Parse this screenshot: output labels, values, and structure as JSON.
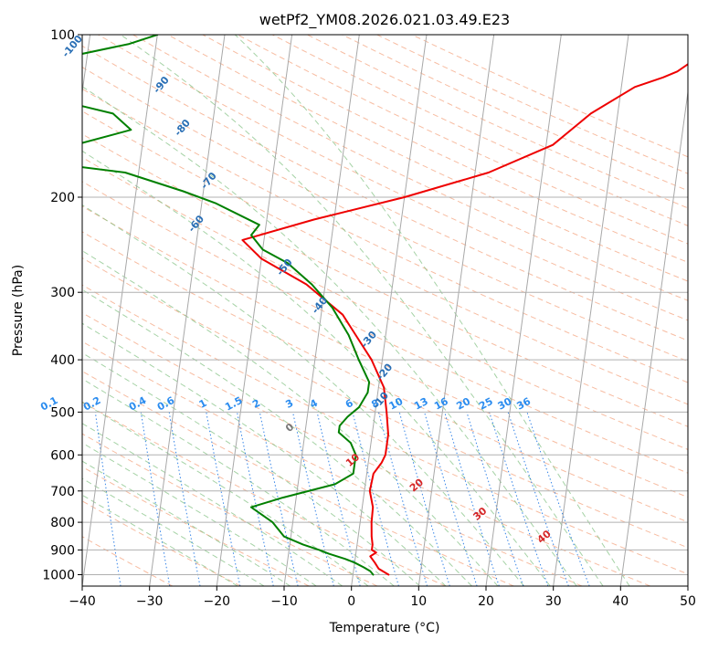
{
  "chart_data": {
    "type": "line",
    "title": "wetPf2_YM08.2026.021.03.49.E23",
    "xlabel": "Temperature (°C)",
    "ylabel": "Pressure (hPa)",
    "xlim": [
      -40,
      50
    ],
    "ylim": [
      1050,
      100
    ],
    "x_ticks": [
      -40,
      -30,
      -20,
      -10,
      0,
      10,
      20,
      30,
      40,
      50
    ],
    "y_ticks": [
      100,
      200,
      300,
      400,
      500,
      600,
      700,
      800,
      900,
      1000
    ],
    "grid": true,
    "skew_factor": 35,
    "series": [
      {
        "name": "Temperature",
        "color": "#ee0000",
        "points": [
          [
            5.3,
            1000
          ],
          [
            3.7,
            975
          ],
          [
            3.0,
            950
          ],
          [
            2.2,
            925
          ],
          [
            3.0,
            910
          ],
          [
            2.3,
            900
          ],
          [
            2.3,
            880
          ],
          [
            2.0,
            850
          ],
          [
            1.7,
            800
          ],
          [
            1.6,
            750
          ],
          [
            0.8,
            700
          ],
          [
            1.0,
            650
          ],
          [
            2.0,
            620
          ],
          [
            2.4,
            600
          ],
          [
            2.4,
            550
          ],
          [
            1.7,
            500
          ],
          [
            0.8,
            450
          ],
          [
            -1.6,
            400
          ],
          [
            -6.8,
            330
          ],
          [
            -12.8,
            290
          ],
          [
            -20.0,
            260
          ],
          [
            -23.2,
            240
          ],
          [
            -13.0,
            220
          ],
          [
            0.0,
            200
          ],
          [
            12.0,
            180
          ],
          [
            21.0,
            160
          ],
          [
            26.0,
            140
          ],
          [
            32.0,
            125
          ],
          [
            36.0,
            120
          ],
          [
            38.0,
            117
          ],
          [
            40.0,
            112
          ],
          [
            43.0,
            107
          ],
          [
            45.0,
            104
          ],
          [
            47.0,
            100
          ]
        ]
      },
      {
        "name": "Dewpoint",
        "color": "#008000",
        "points": [
          [
            3.0,
            1000
          ],
          [
            2.5,
            985
          ],
          [
            1.5,
            970
          ],
          [
            0.0,
            950
          ],
          [
            -1.5,
            935
          ],
          [
            -4.0,
            915
          ],
          [
            -5.5,
            900
          ],
          [
            -8.0,
            880
          ],
          [
            -11.0,
            850
          ],
          [
            -13.0,
            800
          ],
          [
            -16.5,
            750
          ],
          [
            -12.0,
            720
          ],
          [
            -4.5,
            680
          ],
          [
            -2.0,
            650
          ],
          [
            -2.0,
            600
          ],
          [
            -3.0,
            570
          ],
          [
            -5.0,
            545
          ],
          [
            -5.0,
            530
          ],
          [
            -4.0,
            510
          ],
          [
            -2.5,
            490
          ],
          [
            -1.5,
            460
          ],
          [
            -1.5,
            440
          ],
          [
            -3.5,
            400
          ],
          [
            -5.5,
            360
          ],
          [
            -8.5,
            320
          ],
          [
            -12.0,
            290
          ],
          [
            -16.0,
            265
          ],
          [
            -20.0,
            250
          ],
          [
            -22.0,
            235
          ],
          [
            -21.0,
            225
          ],
          [
            -28.0,
            205
          ],
          [
            -33.0,
            195
          ],
          [
            -42.0,
            180
          ],
          [
            -55.0,
            172
          ],
          [
            -62.0,
            170
          ],
          [
            -60.0,
            165
          ],
          [
            -50.0,
            160
          ],
          [
            -42.0,
            150
          ],
          [
            -45.0,
            140
          ],
          [
            -56.0,
            130
          ],
          [
            -72.0,
            127
          ],
          [
            -72.0,
            124
          ],
          [
            -67.0,
            120
          ],
          [
            -53.0,
            110
          ],
          [
            -44.0,
            104
          ],
          [
            -40.0,
            100
          ]
        ]
      }
    ],
    "mixing_ratio_labels": [
      "0.1",
      "0.2",
      "0.4",
      "0.6",
      "1",
      "1.5",
      "2",
      "3",
      "4",
      "6",
      "8",
      "10",
      "13",
      "16",
      "20",
      "25",
      "30",
      "36"
    ],
    "mixing_ratio_values": [
      0.1,
      0.2,
      0.4,
      0.6,
      1,
      1.5,
      2,
      3,
      4,
      6,
      8,
      10,
      13,
      16,
      20,
      25,
      30,
      36
    ],
    "moist_adiabat_labels": [
      "-100",
      "-90",
      "-80",
      "-70",
      "-60",
      "-50",
      "-40",
      "-30",
      "-20",
      "-10"
    ],
    "moist_adiabat_pressures": [
      106,
      125,
      150,
      188,
      226,
      272,
      320,
      370,
      425,
      480
    ],
    "moist_adiabat_rel_x": [
      -52,
      -38,
      -34,
      -29,
      -30,
      -16,
      -10,
      -2,
      1,
      1
    ],
    "wet_bulb_labels": [
      "0",
      "10",
      "20",
      "30",
      "40"
    ],
    "wet_bulb_temps": [
      0,
      10,
      20,
      30,
      40
    ],
    "wet_bulb_pressure": [
      540,
      620,
      690,
      780,
      860
    ]
  }
}
